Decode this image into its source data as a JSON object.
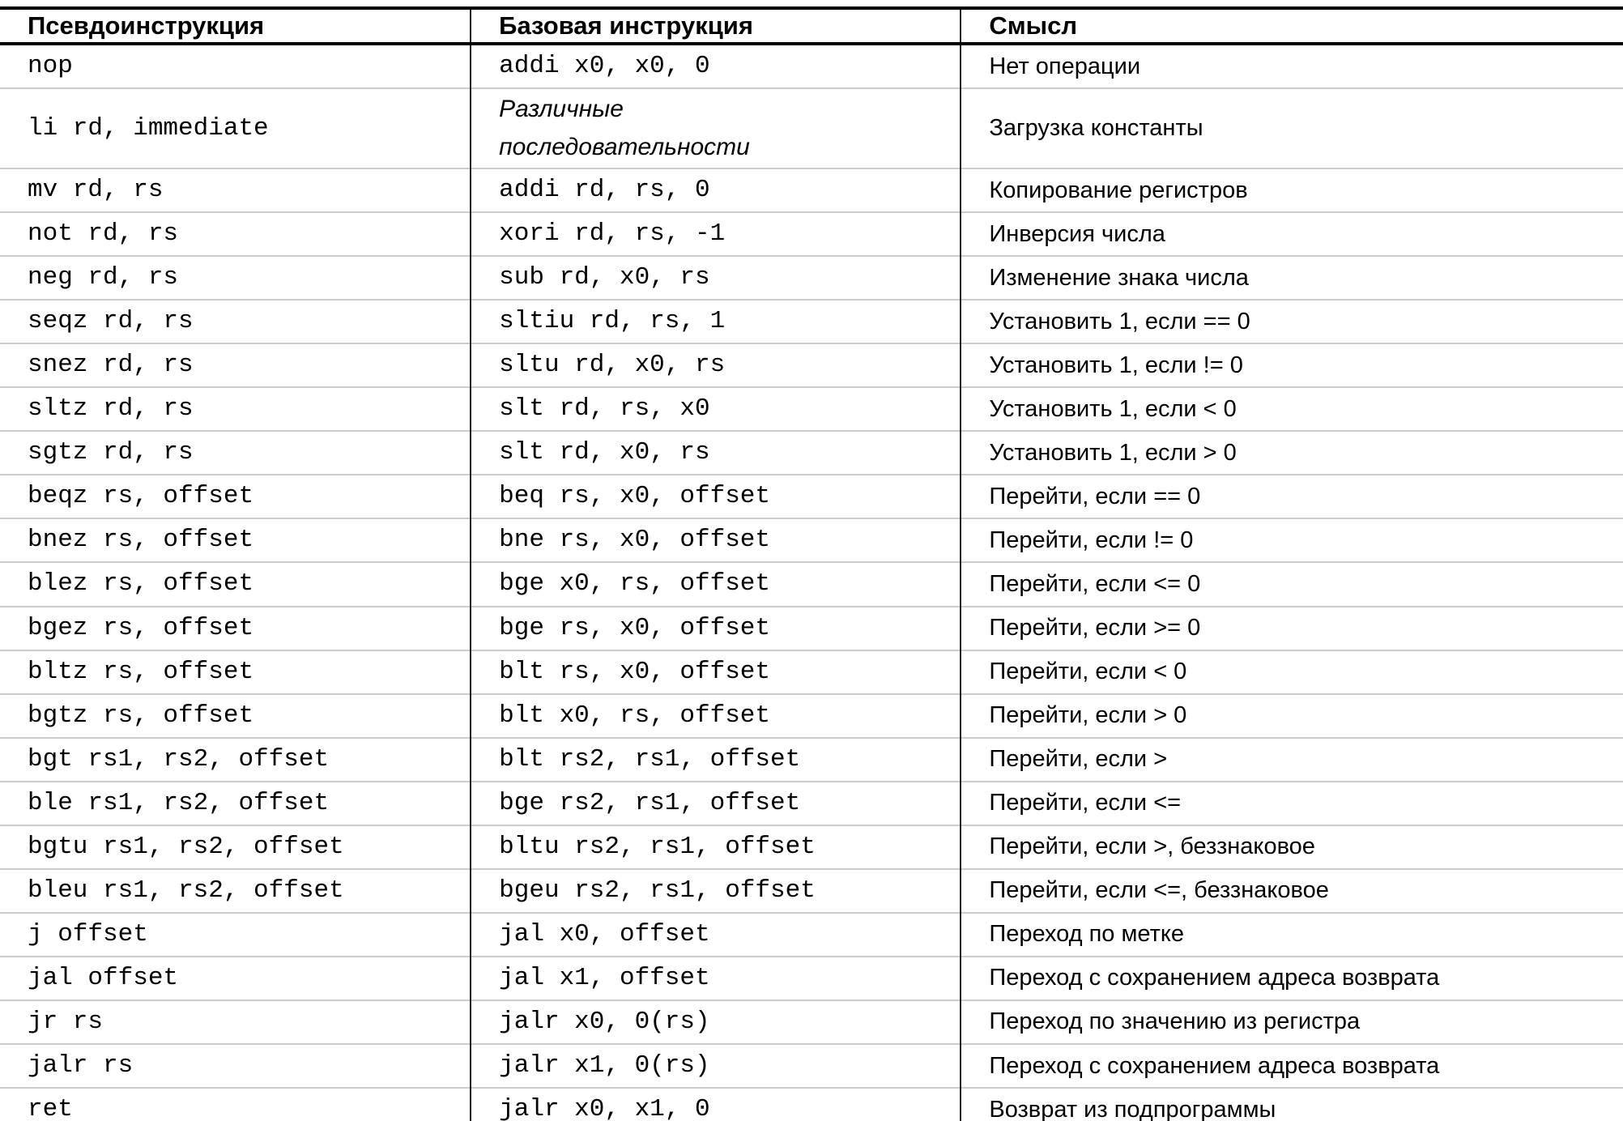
{
  "table": {
    "columns": [
      {
        "label": "Псевдоинструкция"
      },
      {
        "label": "Базовая инструкция"
      },
      {
        "label": "Смысл"
      }
    ],
    "rows": [
      {
        "pseudo": "nop",
        "base": "addi x0, x0, 0",
        "base_italic": false,
        "meaning": "Нет операции"
      },
      {
        "pseudo": "li rd, immediate",
        "base": "Различные\nпоследовательности",
        "base_italic": true,
        "meaning": "Загрузка константы"
      },
      {
        "pseudo": "mv rd, rs",
        "base": "addi rd, rs, 0",
        "base_italic": false,
        "meaning": "Копирование регистров"
      },
      {
        "pseudo": "not rd, rs",
        "base": "xori rd, rs, -1",
        "base_italic": false,
        "meaning": "Инверсия числа"
      },
      {
        "pseudo": "neg rd, rs",
        "base": "sub rd, x0, rs",
        "base_italic": false,
        "meaning": "Изменение знака числа"
      },
      {
        "pseudo": "seqz rd, rs",
        "base": "sltiu rd, rs, 1",
        "base_italic": false,
        "meaning": "Установить 1, если == 0"
      },
      {
        "pseudo": "snez rd, rs",
        "base": "sltu rd, x0, rs",
        "base_italic": false,
        "meaning": "Установить 1, если != 0"
      },
      {
        "pseudo": "sltz rd, rs",
        "base": "slt rd, rs, x0",
        "base_italic": false,
        "meaning": "Установить 1, если < 0"
      },
      {
        "pseudo": "sgtz rd, rs",
        "base": "slt rd, x0, rs",
        "base_italic": false,
        "meaning": "Установить 1, если > 0"
      },
      {
        "pseudo": "beqz rs, offset",
        "base": "beq rs, x0, offset",
        "base_italic": false,
        "meaning": "Перейти, если == 0"
      },
      {
        "pseudo": "bnez rs, offset",
        "base": "bne rs, x0, offset",
        "base_italic": false,
        "meaning": "Перейти, если != 0"
      },
      {
        "pseudo": "blez rs, offset",
        "base": "bge x0, rs, offset",
        "base_italic": false,
        "meaning": "Перейти, если <= 0"
      },
      {
        "pseudo": "bgez rs, offset",
        "base": "bge rs, x0, offset",
        "base_italic": false,
        "meaning": "Перейти, если >= 0"
      },
      {
        "pseudo": "bltz rs, offset",
        "base": "blt rs, x0, offset",
        "base_italic": false,
        "meaning": "Перейти, если < 0"
      },
      {
        "pseudo": "bgtz rs, offset",
        "base": "blt x0, rs, offset",
        "base_italic": false,
        "meaning": "Перейти, если > 0"
      },
      {
        "pseudo": "bgt rs1, rs2, offset",
        "base": "blt rs2, rs1, offset",
        "base_italic": false,
        "meaning": "Перейти, если >"
      },
      {
        "pseudo": "ble rs1, rs2, offset",
        "base": "bge rs2, rs1, offset",
        "base_italic": false,
        "meaning": "Перейти, если <="
      },
      {
        "pseudo": "bgtu rs1, rs2, offset",
        "base": "bltu rs2, rs1, offset",
        "base_italic": false,
        "meaning": "Перейти, если >, беззнаковое"
      },
      {
        "pseudo": "bleu rs1, rs2, offset",
        "base": "bgeu rs2, rs1, offset",
        "base_italic": false,
        "meaning": "Перейти, если <=, беззнаковое"
      },
      {
        "pseudo": "j offset",
        "base": "jal x0, offset",
        "base_italic": false,
        "meaning": "Переход по метке"
      },
      {
        "pseudo": "jal offset",
        "base": "jal x1, offset",
        "base_italic": false,
        "meaning": "Переход с сохранением адреса возврата"
      },
      {
        "pseudo": "jr rs",
        "base": "jalr x0, 0(rs)",
        "base_italic": false,
        "meaning": "Переход по значению из регистра"
      },
      {
        "pseudo": "jalr rs",
        "base": "jalr x1, 0(rs)",
        "base_italic": false,
        "meaning": "Переход с сохранением адреса возврата"
      },
      {
        "pseudo": "ret",
        "base": "jalr x0, x1, 0",
        "base_italic": false,
        "meaning": "Возврат из подпрограммы"
      }
    ]
  },
  "colors": {
    "text": "#000000",
    "background": "#ffffff",
    "heavy_border": "#000000",
    "row_divider": "#cccccc",
    "column_divider": "#222222"
  }
}
